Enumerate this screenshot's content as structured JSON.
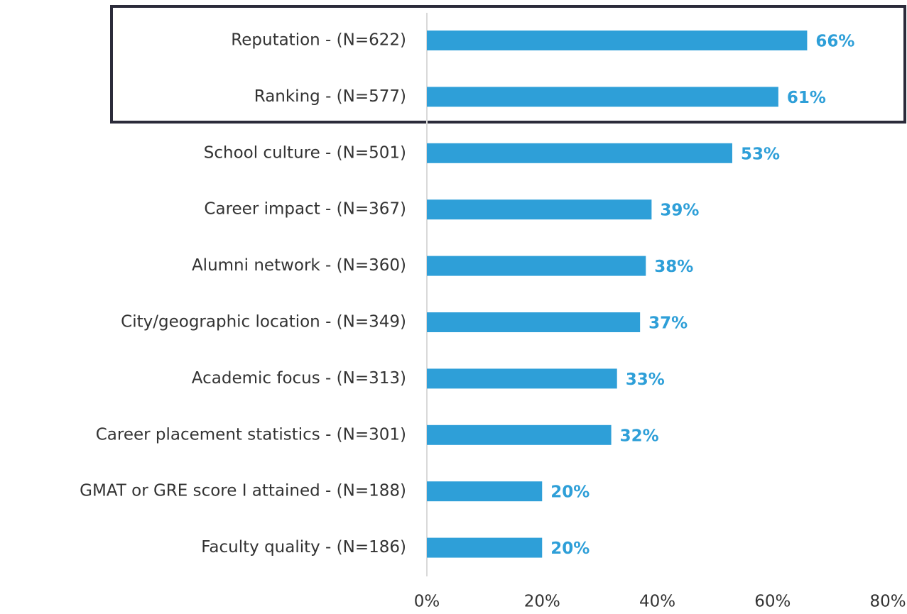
{
  "chart_data": {
    "type": "hbar",
    "categories": [
      "Reputation - (N=622)",
      "Ranking - (N=577)",
      "School culture - (N=501)",
      "Career impact - (N=367)",
      "Alumni network - (N=360)",
      "City/geographic location - (N=349)",
      "Academic focus - (N=313)",
      "Career placement statistics - (N=301)",
      "GMAT or GRE score I attained - (N=188)",
      "Faculty quality - (N=186)"
    ],
    "values": [
      66,
      61,
      53,
      39,
      38,
      37,
      33,
      32,
      20,
      20
    ],
    "value_labels": [
      "66%",
      "61%",
      "53%",
      "39%",
      "38%",
      "37%",
      "33%",
      "32%",
      "20%",
      "20%"
    ],
    "color": "#2e9fd8",
    "xlim": [
      0,
      80
    ],
    "xticks": [
      {
        "value": 0,
        "label": "0%"
      },
      {
        "value": 20,
        "label": "20%"
      },
      {
        "value": 40,
        "label": "40%"
      },
      {
        "value": 60,
        "label": "60%"
      },
      {
        "value": 80,
        "label": "80%"
      }
    ]
  }
}
